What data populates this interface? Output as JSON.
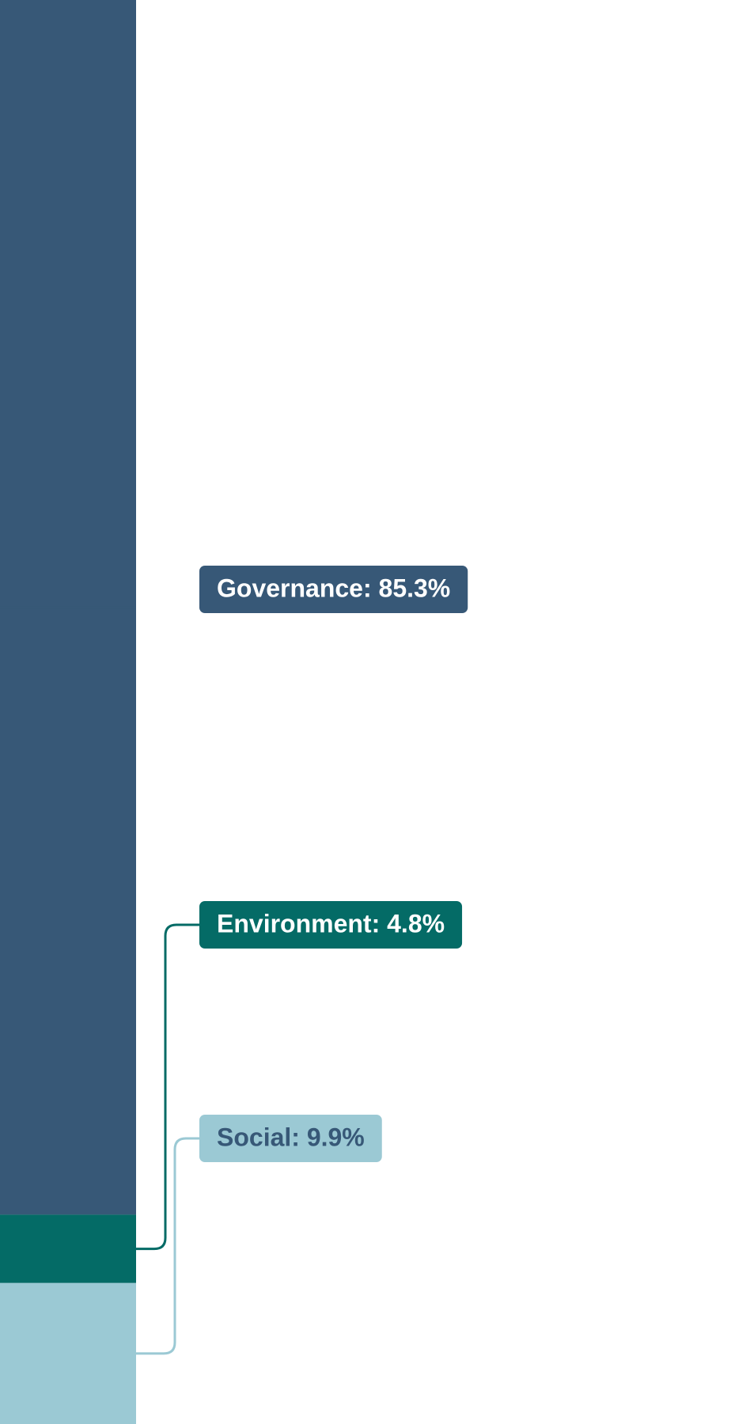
{
  "chart_data": {
    "type": "bar",
    "stacked": true,
    "orientation": "vertical",
    "unit": "%",
    "categories": [
      ""
    ],
    "series": [
      {
        "name": "Governance",
        "label": "Governance: 85.3%",
        "value": 85.3,
        "color": "#375877",
        "text_color": "#ffffff"
      },
      {
        "name": "Environment",
        "label": "Environment: 4.8%",
        "value": 4.8,
        "color": "#046b66",
        "text_color": "#ffffff"
      },
      {
        "name": "Social",
        "label": "Social: 9.9%",
        "value": 9.9,
        "color": "#9bc9d4",
        "text_color": "#375877"
      }
    ],
    "ylim": [
      0,
      100
    ],
    "grid": false,
    "legend": "callout labels to the right of the bar"
  }
}
